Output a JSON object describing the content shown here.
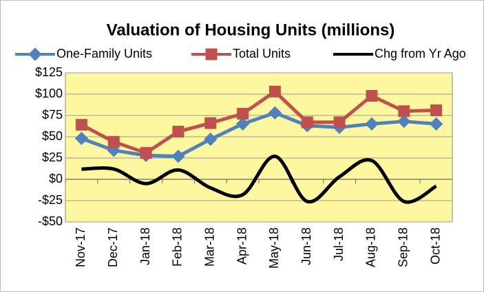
{
  "chart_data": {
    "type": "line",
    "title": "Valuation of Housing Units (millions)",
    "categories": [
      "Nov-17",
      "Dec-17",
      "Jan-18",
      "Feb-18",
      "Mar-18",
      "Apr-18",
      "May-18",
      "Jun-18",
      "Jul-18",
      "Aug-18",
      "Sep-18",
      "Oct-18"
    ],
    "series": [
      {
        "name": "One-Family Units",
        "color": "#4f81bd",
        "marker": "diamond",
        "values": [
          48,
          34,
          28,
          27,
          47,
          65,
          78,
          63,
          61,
          65,
          68,
          65
        ]
      },
      {
        "name": "Total Units",
        "color": "#c0504d",
        "marker": "square",
        "values": [
          64,
          44,
          31,
          56,
          66,
          77,
          103,
          67,
          67,
          98,
          80,
          81
        ]
      },
      {
        "name": "Chg from Yr Ago",
        "color": "#000000",
        "smooth": true,
        "values": [
          12,
          12,
          -5,
          11,
          -10,
          -18,
          27,
          -26,
          3,
          22,
          -26,
          -8
        ]
      }
    ],
    "ylim": [
      -50,
      125
    ],
    "yticks": [
      {
        "value": -50,
        "label": "-$50"
      },
      {
        "value": -25,
        "label": "-$25"
      },
      {
        "value": 0,
        "label": "$0"
      },
      {
        "value": 25,
        "label": "$25"
      },
      {
        "value": 50,
        "label": "$50"
      },
      {
        "value": 75,
        "label": "$75"
      },
      {
        "value": 100,
        "label": "$100"
      },
      {
        "value": 125,
        "label": "$125"
      }
    ],
    "grid": true,
    "legend": "top",
    "plot_background": "#fdf79f"
  }
}
